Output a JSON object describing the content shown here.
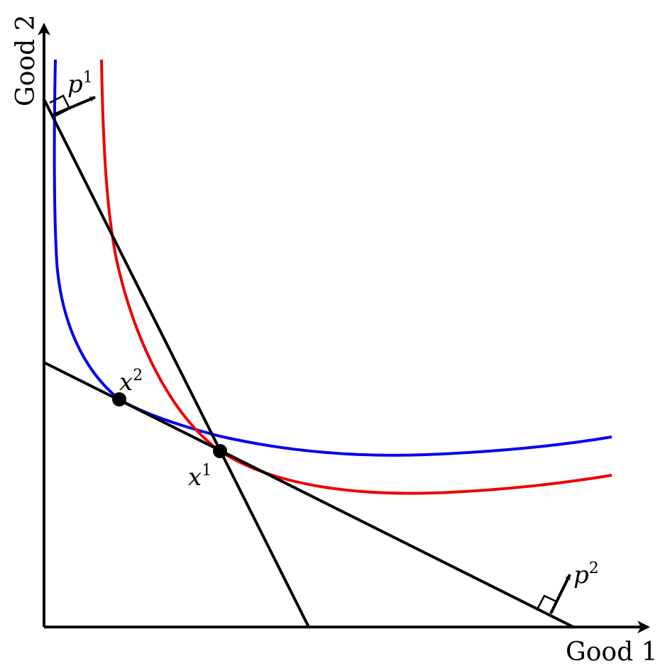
{
  "axes": {
    "x_label": "Good 1",
    "y_label": "Good 2"
  },
  "points": {
    "x1": {
      "base": "x",
      "sup": "1"
    },
    "x2": {
      "base": "x",
      "sup": "2"
    }
  },
  "price_vectors": {
    "p1": {
      "base": "p",
      "sup": "1"
    },
    "p2": {
      "base": "p",
      "sup": "2"
    }
  },
  "colors": {
    "indifference_curve_blue": "#0000ee",
    "indifference_curve_red": "#ee0000",
    "budget_line": "#000000",
    "axis": "#000000"
  }
}
